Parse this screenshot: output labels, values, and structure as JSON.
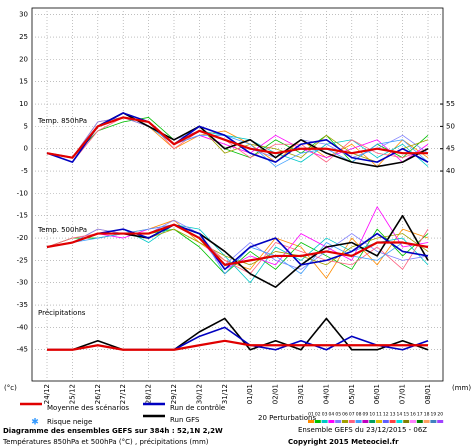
{
  "chart_data": {
    "type": "line",
    "title": "Diagramme des ensembles GEFS sur 384h : 52,1N 2,2W",
    "subtitle": "Températures 850hPa et 500hPa (°C) , précipitations (mm)",
    "run_info": "Ensemble GEFS du 23/12/2015 - 06Z",
    "copyright": "Copyright 2015 Meteociel.fr",
    "panel_850": "Temp. 850hPa",
    "panel_500": "Temp. 500hPa",
    "panel_precip": "Précipitations",
    "y_unit": "(°c)",
    "y2_unit": "(mm)",
    "snow_label": "Risque neige",
    "perturbations_label": "20 Perturbations",
    "x": [
      "24/12",
      "25/12",
      "26/12",
      "27/12",
      "28/12",
      "29/12",
      "30/12",
      "31/12",
      "01/01",
      "02/01",
      "03/01",
      "04/01",
      "05/01",
      "06/01",
      "07/01",
      "08/01"
    ],
    "ylim": [
      -52,
      31.5
    ],
    "yticks": [
      30,
      25,
      20,
      15,
      10,
      5,
      0,
      -5,
      -10,
      -15,
      -20,
      -25,
      -30,
      -35,
      -40,
      -45
    ],
    "y2lim": [
      -7,
      76.5
    ],
    "y2ticks": [
      40,
      45,
      50,
      55
    ],
    "grid": true,
    "series": [
      {
        "name": "Moyenne des scénarios",
        "color": "#e00000",
        "width": 2.2,
        "values": [
          -1,
          -2,
          5,
          7,
          6,
          1,
          4,
          2,
          0,
          -1,
          0,
          0,
          -1,
          0,
          -1,
          -1
        ],
        "values_500": [
          -22,
          -21,
          -19,
          -19,
          -19,
          -17,
          -20,
          -26,
          -25,
          -24,
          -24,
          -23,
          -24,
          -21,
          -21,
          -22
        ],
        "precip": [
          0,
          0,
          1,
          0,
          0,
          0,
          1,
          2,
          1,
          1,
          1,
          1,
          1,
          1,
          1,
          1
        ]
      },
      {
        "name": "Run de contrôle",
        "color": "#0000c0",
        "width": 1.6,
        "values": [
          -1,
          -3,
          5,
          8,
          6,
          1,
          5,
          3,
          -1,
          -3,
          1,
          2,
          -2,
          -3,
          0,
          -3
        ],
        "values_500": [
          -22,
          -21,
          -19,
          -18,
          -20,
          -17,
          -19,
          -27,
          -22,
          -20,
          -26,
          -25,
          -23,
          -19,
          -23,
          -24
        ],
        "precip": [
          0,
          0,
          1,
          0,
          0,
          0,
          3,
          5,
          1,
          0,
          2,
          0,
          3,
          1,
          0,
          2
        ]
      },
      {
        "name": "Run GFS",
        "color": "#000000",
        "width": 1.6,
        "values": [
          -1,
          -2,
          5,
          8,
          5,
          2,
          5,
          0,
          2,
          -2,
          2,
          -1,
          -3,
          -4,
          -3,
          0
        ],
        "values_500": [
          -22,
          -21,
          -19,
          -19,
          -20,
          -17,
          -19,
          -23,
          -28,
          -31,
          -26,
          -22,
          -21,
          -24,
          -15,
          -25
        ],
        "precip": [
          0,
          0,
          2,
          0,
          0,
          0,
          4,
          7,
          0,
          2,
          0,
          7,
          0,
          0,
          2,
          0
        ]
      }
    ],
    "perturbations": [
      {
        "name": "01",
        "color": "#ff8c00",
        "values": [
          -1,
          -2,
          6,
          7,
          5,
          0,
          3,
          4,
          1,
          -3,
          2,
          -2,
          1,
          -4,
          2,
          -2
        ],
        "values_500": [
          -22,
          -21,
          -18,
          -19,
          -18,
          -16,
          -21,
          -25,
          -27,
          -20,
          -22,
          -29,
          -20,
          -26,
          -18,
          -20
        ]
      },
      {
        "name": "02",
        "color": "#00c000",
        "values": [
          -1,
          -2,
          4,
          6,
          7,
          2,
          5,
          0,
          -2,
          2,
          -1,
          3,
          -3,
          1,
          -2,
          3
        ],
        "values_500": [
          -22,
          -20,
          -20,
          -19,
          -19,
          -18,
          -22,
          -28,
          -23,
          -27,
          -21,
          -24,
          -27,
          -18,
          -24,
          -19
        ]
      },
      {
        "name": "03",
        "color": "#00c8c8",
        "values": [
          -1,
          -3,
          5,
          8,
          6,
          1,
          4,
          3,
          2,
          -1,
          -3,
          1,
          2,
          -2,
          1,
          -4
        ],
        "values_500": [
          -22,
          -21,
          -19,
          -18,
          -21,
          -17,
          -18,
          -24,
          -30,
          -22,
          -25,
          -20,
          -23,
          -21,
          -20,
          -26
        ]
      },
      {
        "name": "04",
        "color": "#ff00ff",
        "values": [
          -1,
          -2,
          5,
          7,
          6,
          1,
          3,
          1,
          -1,
          3,
          0,
          -2,
          0,
          2,
          -3,
          1
        ],
        "values_500": [
          -22,
          -21,
          -19,
          -20,
          -18,
          -17,
          -20,
          -27,
          -24,
          -26,
          -19,
          -22,
          -25,
          -13,
          -22,
          -21
        ]
      },
      {
        "name": "05",
        "color": "#8080ff",
        "values": [
          -1,
          -2,
          6,
          7,
          5,
          2,
          4,
          2,
          0,
          -2,
          2,
          1,
          -2,
          0,
          3,
          -1
        ],
        "values_500": [
          -22,
          -21,
          -18,
          -19,
          -19,
          -16,
          -19,
          -26,
          -21,
          -25,
          -27,
          -23,
          -19,
          -23,
          -25,
          -24
        ]
      },
      {
        "name": "06",
        "color": "#a0a000",
        "values": [
          -1,
          -2,
          5,
          7,
          6,
          1,
          5,
          -1,
          1,
          0,
          -2,
          3,
          -1,
          -3,
          0,
          2
        ],
        "values_500": [
          -22,
          -21,
          -19,
          -19,
          -20,
          -18,
          -21,
          -24,
          -26,
          -23,
          -24,
          -26,
          -22,
          -20,
          -19,
          -23
        ]
      },
      {
        "name": "07",
        "color": "#ff6080",
        "values": [
          -1,
          -3,
          4,
          7,
          6,
          0,
          4,
          2,
          -2,
          1,
          1,
          -3,
          2,
          -1,
          -2,
          0
        ],
        "values_500": [
          -22,
          -20,
          -19,
          -19,
          -19,
          -17,
          -20,
          -25,
          -28,
          -21,
          -23,
          -25,
          -26,
          -22,
          -27,
          -18
        ]
      },
      {
        "name": "08",
        "color": "#40a0ff",
        "values": [
          -1,
          -2,
          5,
          8,
          5,
          1,
          3,
          3,
          1,
          -4,
          -1,
          0,
          -3,
          1,
          2,
          -3
        ],
        "values_500": [
          -22,
          -21,
          -20,
          -19,
          -18,
          -17,
          -19,
          -28,
          -22,
          -24,
          -28,
          -21,
          -24,
          -25,
          -21,
          -22
        ]
      },
      {
        "name": "09",
        "color": "#c000c0"
      },
      {
        "name": "10",
        "color": "#00a060"
      },
      {
        "name": "11",
        "color": "#e0c000"
      },
      {
        "name": "12",
        "color": "#6060ff"
      },
      {
        "name": "13",
        "color": "#ff4040"
      },
      {
        "name": "14",
        "color": "#00e0e0"
      },
      {
        "name": "15",
        "color": "#808000"
      },
      {
        "name": "16",
        "color": "#ff80ff"
      },
      {
        "name": "17",
        "color": "#008000"
      },
      {
        "name": "18",
        "color": "#ffa060"
      },
      {
        "name": "19",
        "color": "#4080c0"
      },
      {
        "name": "20",
        "color": "#a040ff"
      }
    ]
  }
}
